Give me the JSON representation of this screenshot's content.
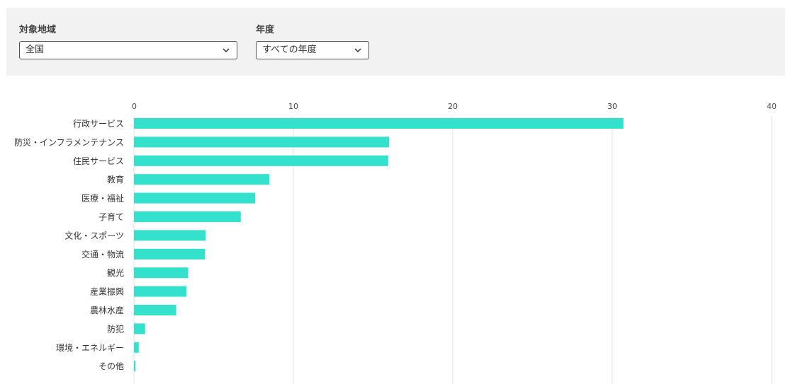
{
  "filters": {
    "region": {
      "label": "対象地域",
      "value": "全国"
    },
    "year": {
      "label": "年度",
      "value": "すべての年度"
    }
  },
  "colors": {
    "bar": "#33e1cc",
    "grid": "#e3e3e3",
    "panel": "#f2f2f2"
  },
  "chart_data": {
    "type": "bar",
    "orientation": "horizontal",
    "title": "",
    "xlabel": "",
    "ylabel": "",
    "xlim": [
      0,
      40
    ],
    "ticks": [
      0,
      10,
      20,
      30,
      40
    ],
    "grid": true,
    "categories": [
      "行政サービス",
      "防災・インフラメンテナンス",
      "住民サービス",
      "教育",
      "医療・福祉",
      "子育て",
      "文化・スポーツ",
      "交通・物流",
      "観光",
      "産業振興",
      "農林水産",
      "防犯",
      "環境・エネルギー",
      "その他"
    ],
    "values": [
      30.7,
      16.0,
      15.95,
      8.5,
      7.6,
      6.7,
      4.5,
      4.45,
      3.4,
      3.3,
      2.65,
      0.7,
      0.3,
      0.1
    ]
  }
}
